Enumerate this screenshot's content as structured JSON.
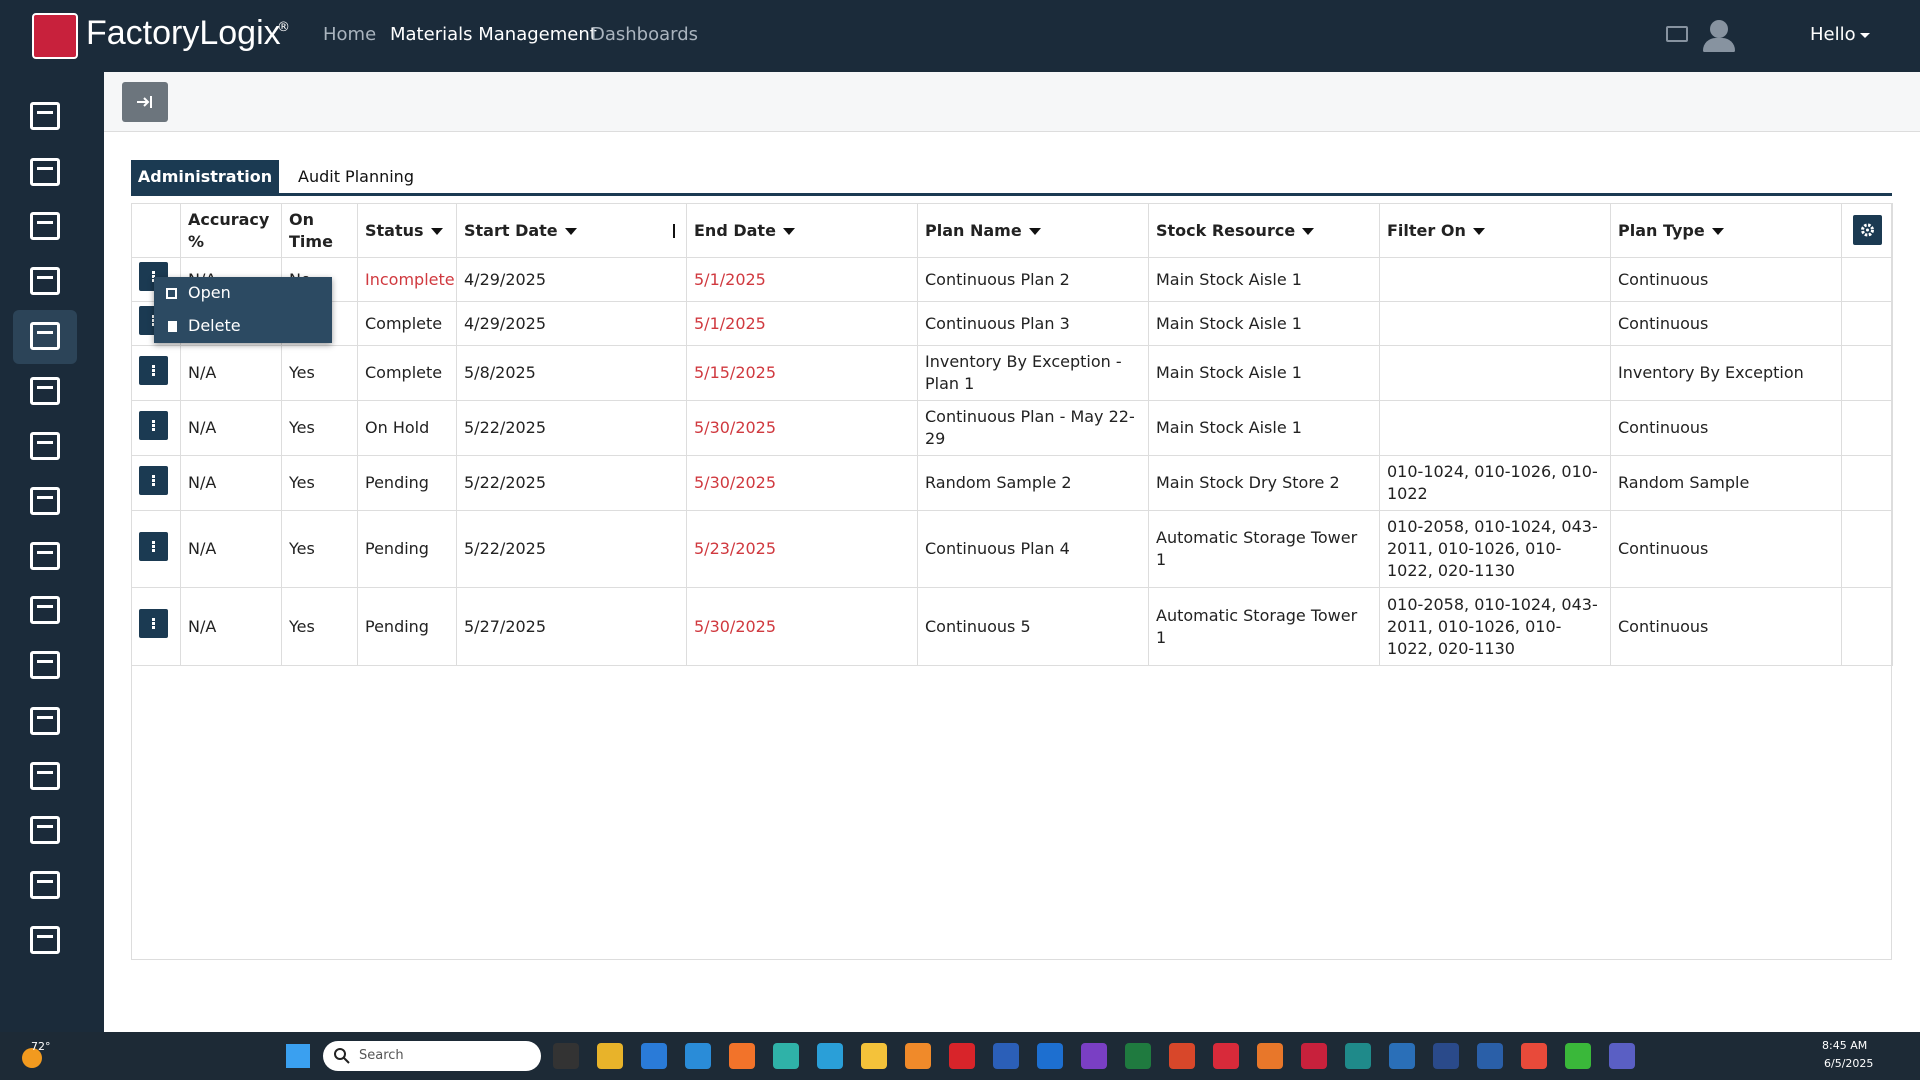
{
  "header": {
    "logo": "FactoryLogix",
    "registered": "®",
    "nav": [
      "Home",
      "Materials Management",
      "Dashboards"
    ],
    "user": "Hello"
  },
  "tabs": [
    "Administration",
    "Audit Planning"
  ],
  "table": {
    "columns": [
      "Accuracy %",
      "On Time",
      "Status",
      "Start Date",
      "End Date",
      "Plan Name",
      "Stock Resource",
      "Filter On",
      "Plan Type"
    ],
    "rows": [
      [
        "N/A",
        "No",
        "Incomplete",
        "4/29/2025",
        "5/1/2025",
        "Continuous Plan 2",
        "Main Stock Aisle 1",
        null,
        "Continuous"
      ],
      [
        null,
        null,
        "Complete",
        "4/29/2025",
        "5/1/2025",
        "Continuous Plan 3",
        "Main Stock Aisle 1",
        null,
        "Continuous"
      ],
      [
        "N/A",
        "Yes",
        "Complete",
        "5/8/2025",
        "5/15/2025",
        "Inventory By Exception - Plan 1",
        "Main Stock Aisle 1",
        null,
        "Inventory By Exception"
      ],
      [
        "N/A",
        "Yes",
        "On Hold",
        "5/22/2025",
        "5/30/2025",
        "Continuous Plan - May 22-29",
        "Main Stock Aisle 1",
        null,
        "Continuous"
      ],
      [
        "N/A",
        "Yes",
        "Pending",
        "5/22/2025",
        "5/30/2025",
        "Random Sample 2",
        "Main Stock Dry Store 2",
        "010-1024, 010-1026, 010-1022",
        "Random Sample"
      ],
      [
        "N/A",
        "Yes",
        "Pending",
        "5/22/2025",
        "5/23/2025",
        "Continuous Plan 4",
        "Automatic Storage Tower 1",
        "010-2058, 010-1024, 043-2011, 010-1026, 010-1022, 020-1130",
        "Continuous"
      ],
      [
        "N/A",
        "Yes",
        "Pending",
        "5/27/2025",
        "5/30/2025",
        "Continuous 5",
        "Automatic Storage Tower 1",
        "010-2058, 010-1024, 043-2011, 010-1026, 010-1022, 020-1130",
        "Continuous"
      ]
    ]
  },
  "context_menu": [
    "Open",
    "Delete"
  ],
  "taskbar": {
    "weather": "72°",
    "search": "Search",
    "time": "8:45 AM",
    "date": "6/5/2025"
  }
}
